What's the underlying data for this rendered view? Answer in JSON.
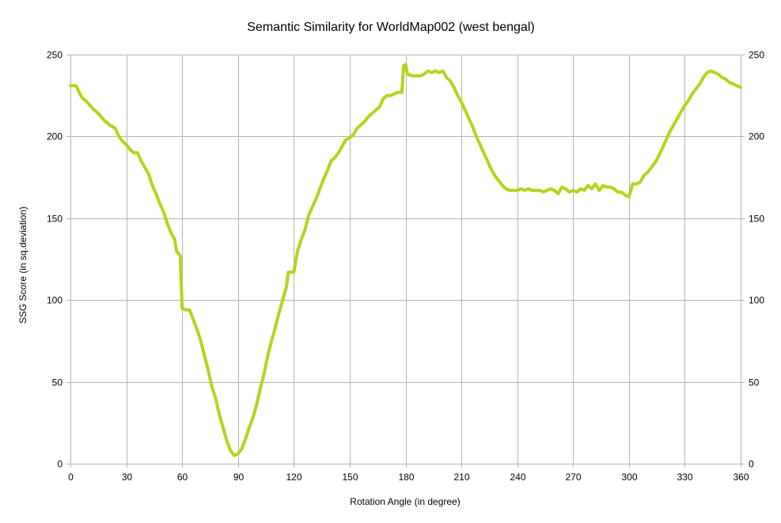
{
  "chart_data": {
    "type": "line",
    "title": "Semantic Similarity for WorldMap002 (west bengal)",
    "xlabel": "Rotation Angle (in degree)",
    "ylabel": "SSG Score (in sq.deviation)",
    "xlim": [
      0,
      360
    ],
    "ylim": [
      0,
      250
    ],
    "xticks": [
      0,
      30,
      60,
      90,
      120,
      150,
      180,
      210,
      240,
      270,
      300,
      330,
      360
    ],
    "yticks": [
      0,
      50,
      100,
      150,
      200,
      250
    ],
    "grid": true,
    "secondary_y_axis": true,
    "legend": "none",
    "series": [
      {
        "color": "#b0d61c",
        "points": [
          [
            0,
            231
          ],
          [
            3,
            231
          ],
          [
            6,
            224
          ],
          [
            9,
            221
          ],
          [
            12,
            217
          ],
          [
            15,
            214
          ],
          [
            18,
            210
          ],
          [
            21,
            207
          ],
          [
            24,
            205
          ],
          [
            26,
            200
          ],
          [
            28,
            197
          ],
          [
            30,
            195
          ],
          [
            32,
            192
          ],
          [
            34,
            190
          ],
          [
            36,
            190
          ],
          [
            38,
            185
          ],
          [
            40,
            181
          ],
          [
            42,
            177
          ],
          [
            44,
            170
          ],
          [
            46,
            165
          ],
          [
            48,
            159
          ],
          [
            50,
            154
          ],
          [
            52,
            147
          ],
          [
            54,
            141
          ],
          [
            56,
            137
          ],
          [
            57,
            130
          ],
          [
            59,
            127
          ],
          [
            60,
            95
          ],
          [
            62,
            94
          ],
          [
            64,
            94
          ],
          [
            66,
            88
          ],
          [
            68,
            82
          ],
          [
            70,
            75
          ],
          [
            72,
            66
          ],
          [
            74,
            57
          ],
          [
            76,
            47
          ],
          [
            78,
            40
          ],
          [
            80,
            30
          ],
          [
            82,
            22
          ],
          [
            84,
            14
          ],
          [
            86,
            8
          ],
          [
            88,
            5
          ],
          [
            90,
            6
          ],
          [
            92,
            9
          ],
          [
            94,
            15
          ],
          [
            96,
            22
          ],
          [
            98,
            28
          ],
          [
            100,
            36
          ],
          [
            102,
            46
          ],
          [
            104,
            55
          ],
          [
            106,
            66
          ],
          [
            108,
            75
          ],
          [
            110,
            83
          ],
          [
            112,
            92
          ],
          [
            114,
            100
          ],
          [
            116,
            108
          ],
          [
            117,
            117
          ],
          [
            120,
            117
          ],
          [
            122,
            130
          ],
          [
            124,
            137
          ],
          [
            126,
            143
          ],
          [
            128,
            152
          ],
          [
            130,
            157
          ],
          [
            132,
            162
          ],
          [
            134,
            168
          ],
          [
            136,
            174
          ],
          [
            138,
            179
          ],
          [
            140,
            185
          ],
          [
            142,
            187
          ],
          [
            144,
            190
          ],
          [
            146,
            194
          ],
          [
            148,
            198
          ],
          [
            150,
            199
          ],
          [
            152,
            201
          ],
          [
            154,
            205
          ],
          [
            156,
            207
          ],
          [
            158,
            209
          ],
          [
            160,
            212
          ],
          [
            162,
            214
          ],
          [
            164,
            216
          ],
          [
            166,
            218
          ],
          [
            168,
            223
          ],
          [
            170,
            225
          ],
          [
            172,
            225
          ],
          [
            174,
            226
          ],
          [
            176,
            227
          ],
          [
            178,
            227
          ],
          [
            179,
            243
          ],
          [
            180,
            244
          ],
          [
            181,
            238
          ],
          [
            184,
            237
          ],
          [
            186,
            237
          ],
          [
            188,
            237
          ],
          [
            190,
            238
          ],
          [
            192,
            240
          ],
          [
            194,
            239
          ],
          [
            196,
            240
          ],
          [
            198,
            239
          ],
          [
            200,
            240
          ],
          [
            202,
            236
          ],
          [
            204,
            234
          ],
          [
            206,
            230
          ],
          [
            208,
            225
          ],
          [
            210,
            221
          ],
          [
            212,
            216
          ],
          [
            214,
            211
          ],
          [
            216,
            206
          ],
          [
            218,
            200
          ],
          [
            220,
            195
          ],
          [
            222,
            190
          ],
          [
            224,
            185
          ],
          [
            226,
            180
          ],
          [
            228,
            176
          ],
          [
            230,
            173
          ],
          [
            232,
            170
          ],
          [
            234,
            168
          ],
          [
            236,
            167
          ],
          [
            238,
            167
          ],
          [
            240,
            167
          ],
          [
            242,
            168
          ],
          [
            244,
            167
          ],
          [
            246,
            168
          ],
          [
            248,
            167
          ],
          [
            250,
            167
          ],
          [
            252,
            167
          ],
          [
            254,
            166
          ],
          [
            256,
            167
          ],
          [
            258,
            168
          ],
          [
            260,
            167
          ],
          [
            262,
            165
          ],
          [
            264,
            169
          ],
          [
            266,
            168
          ],
          [
            268,
            166
          ],
          [
            270,
            167
          ],
          [
            272,
            166
          ],
          [
            274,
            168
          ],
          [
            276,
            167
          ],
          [
            278,
            170
          ],
          [
            280,
            168
          ],
          [
            282,
            171
          ],
          [
            284,
            167
          ],
          [
            286,
            170
          ],
          [
            288,
            169
          ],
          [
            290,
            169
          ],
          [
            292,
            168
          ],
          [
            294,
            166
          ],
          [
            296,
            166
          ],
          [
            298,
            164
          ],
          [
            300,
            163
          ],
          [
            302,
            171
          ],
          [
            304,
            171
          ],
          [
            306,
            172
          ],
          [
            308,
            176
          ],
          [
            310,
            178
          ],
          [
            312,
            181
          ],
          [
            314,
            184
          ],
          [
            316,
            188
          ],
          [
            318,
            193
          ],
          [
            320,
            198
          ],
          [
            322,
            203
          ],
          [
            324,
            207
          ],
          [
            326,
            211
          ],
          [
            328,
            215
          ],
          [
            330,
            219
          ],
          [
            332,
            222
          ],
          [
            334,
            226
          ],
          [
            336,
            229
          ],
          [
            338,
            232
          ],
          [
            340,
            236
          ],
          [
            342,
            239
          ],
          [
            344,
            240
          ],
          [
            346,
            239
          ],
          [
            348,
            238
          ],
          [
            350,
            236
          ],
          [
            352,
            235
          ],
          [
            354,
            233
          ],
          [
            356,
            232
          ],
          [
            358,
            231
          ],
          [
            360,
            230
          ]
        ]
      }
    ]
  }
}
